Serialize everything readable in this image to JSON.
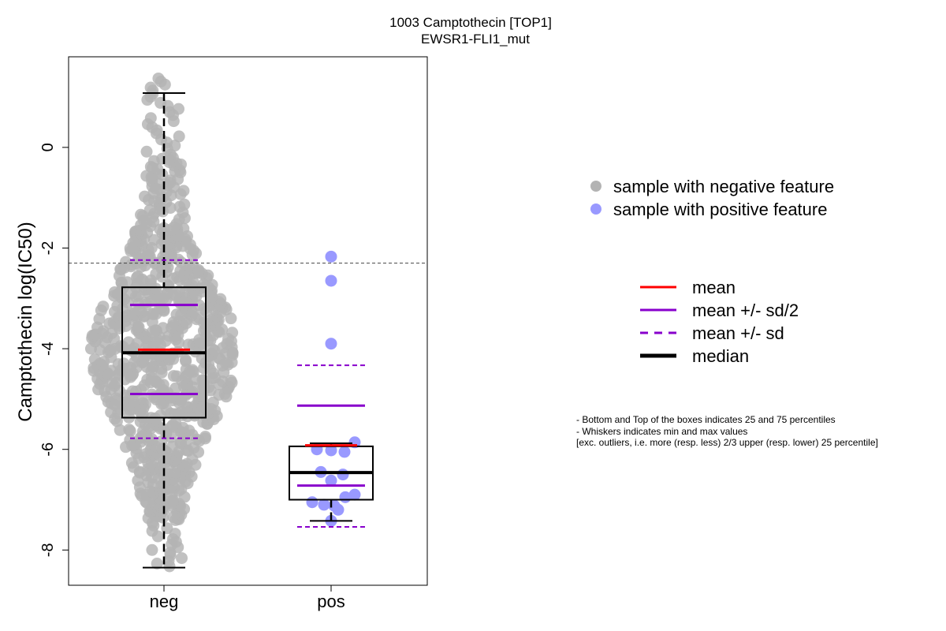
{
  "chart_data": {
    "type": "box-swarm",
    "title": "1003 Camptothecin [TOP1]",
    "subtitle": "EWSR1-FLI1_mut",
    "ylabel": "Camptothecin log(IC50)",
    "xlabel": "",
    "categories": [
      "neg",
      "pos"
    ],
    "ylim": [
      -8.7,
      1.8
    ],
    "yticks": [
      -8,
      -6,
      -4,
      -2,
      0
    ],
    "threshold_line": -2.3,
    "groups": [
      {
        "name": "neg",
        "color": "#b3b3b3",
        "n": 880,
        "min": -8.35,
        "q1": -5.37,
        "median": -4.08,
        "q3": -2.78,
        "max": 1.08,
        "mean": -4.02,
        "mean_minus_half_sd": -4.9,
        "mean_plus_half_sd": -3.13,
        "mean_minus_sd": -5.78,
        "mean_plus_sd": -2.24,
        "points": []
      },
      {
        "name": "pos",
        "color": "#9999ff",
        "min": -7.42,
        "q1": -7.0,
        "median": -6.46,
        "q3": -5.94,
        "max": -5.88,
        "mean": -5.92,
        "mean_minus_half_sd": -6.72,
        "mean_plus_half_sd": -5.13,
        "mean_minus_sd": -7.54,
        "mean_plus_sd": -4.33,
        "points": [
          -2.17,
          -2.65,
          -3.9,
          -5.86,
          -6.0,
          -6.02,
          -6.05,
          -6.45,
          -6.5,
          -6.62,
          -6.9,
          -6.95,
          -7.05,
          -7.1,
          -7.12,
          -7.2,
          -7.42
        ]
      }
    ],
    "legend_points": [
      {
        "label": "sample with negative feature",
        "color": "#b3b3b3"
      },
      {
        "label": "sample with positive feature",
        "color": "#9999ff"
      }
    ],
    "legend_lines": [
      {
        "label": "mean",
        "color": "#ff0000",
        "style": "solid"
      },
      {
        "label": "mean +/- sd/2",
        "color": "#8800cc",
        "style": "solid"
      },
      {
        "label": "mean +/- sd",
        "color": "#8800cc",
        "style": "dashed"
      },
      {
        "label": "median",
        "color": "#000000",
        "style": "solid-thick"
      }
    ],
    "notes": [
      "- Bottom and Top of the boxes indicates 25 and 75 percentiles",
      "- Whiskers indicates min and max values",
      "[exc. outliers, i.e. more (resp. less) 2/3 upper (resp. lower) 25 percentile]"
    ]
  }
}
